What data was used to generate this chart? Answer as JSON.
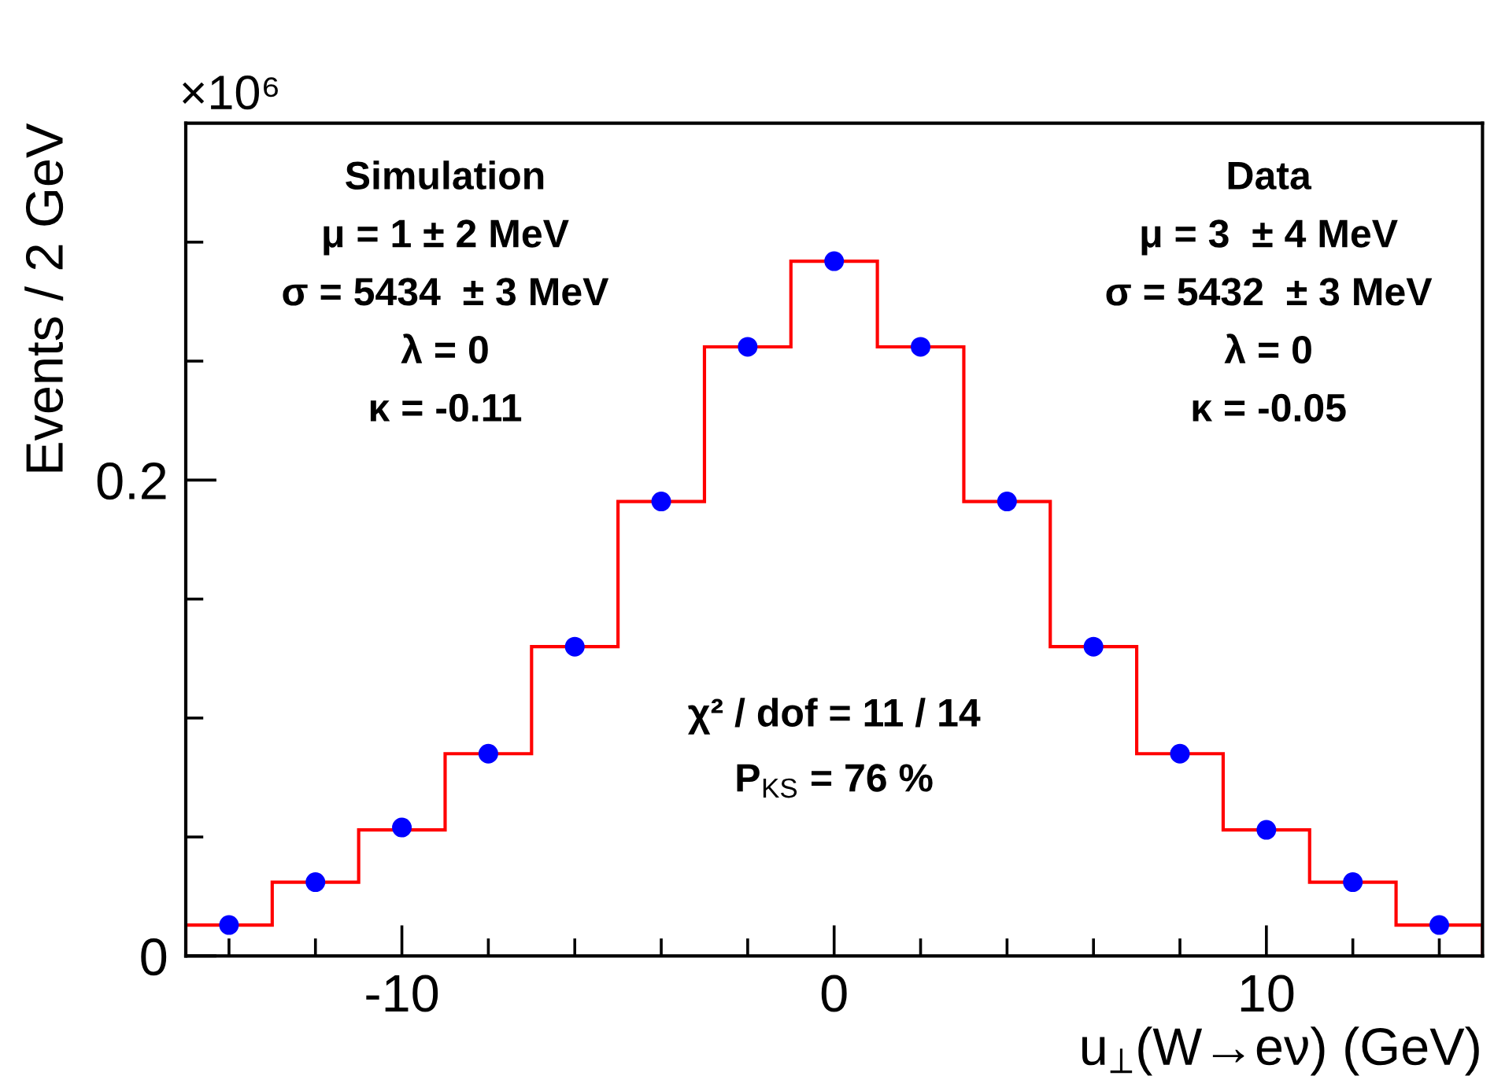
{
  "chart_data": {
    "type": "histogram",
    "xlabel": "u$_{⊥}$(W→eν) (GeV)",
    "ylabel": "Events / 2 GeV",
    "bins": [
      -15,
      -13,
      -11,
      -9,
      -7,
      -5,
      -3,
      -1,
      1,
      3,
      5,
      7,
      9,
      11,
      13,
      15
    ],
    "series": [
      {
        "color": "#ff0000",
        "values": [
          0.013,
          0.031,
          0.053,
          0.085,
          0.13,
          0.191,
          0.256,
          0.292,
          0.256,
          0.191,
          0.13,
          0.085,
          0.053,
          0.031,
          0.013
        ]
      },
      {
        "type": "scatter",
        "color": "#0000ff",
        "x": [
          -14,
          -12,
          -10,
          -8,
          -6,
          -4,
          -2,
          0,
          2,
          4,
          6,
          8,
          10,
          12,
          14
        ],
        "values": [
          0.013,
          0.031,
          0.054,
          0.085,
          0.13,
          0.191,
          0.256,
          0.292,
          0.256,
          0.191,
          0.13,
          0.085,
          0.053,
          0.031,
          0.013
        ]
      }
    ],
    "xlim": [
      -15,
      15
    ],
    "xticks": [
      {
        "value": -14,
        "label": null
      },
      {
        "value": -12,
        "label": null
      },
      -10,
      {
        "value": -8,
        "label": null
      },
      {
        "value": -6,
        "label": null
      },
      {
        "value": -4,
        "label": null
      },
      {
        "value": -2,
        "label": null
      },
      0,
      {
        "value": 2,
        "label": null
      },
      {
        "value": 4,
        "label": null
      },
      {
        "value": 6,
        "label": null
      },
      {
        "value": 8,
        "label": null
      },
      10,
      {
        "value": 12,
        "label": null
      },
      {
        "value": 14,
        "label": null
      }
    ],
    "ylim": [
      0,
      0.35
    ],
    "yticks": [
      0,
      {
        "value": 0.05,
        "label": null
      },
      {
        "value": 0.1,
        "label": null
      },
      {
        "value": 0.15,
        "label": null
      },
      0.2,
      {
        "value": 0.25,
        "label": null
      },
      {
        "value": 0.3,
        "label": null
      }
    ],
    "annotations": [
      "×10⁶",
      "Simulation\nμ = 1 ± 2 MeV\nσ = 5434  ± 3 MeV\nλ = 0\nκ = -0.11",
      "Data\nμ = 3  ± 4 MeV\nσ = 5432  ± 3 MeV\nλ = 0\nκ = -0.05",
      "χ² / dof = 11 / 14\nP$_{KS}$ = 76 %"
    ],
    "grid": false,
    "legend": false,
    "marker": "circle"
  }
}
